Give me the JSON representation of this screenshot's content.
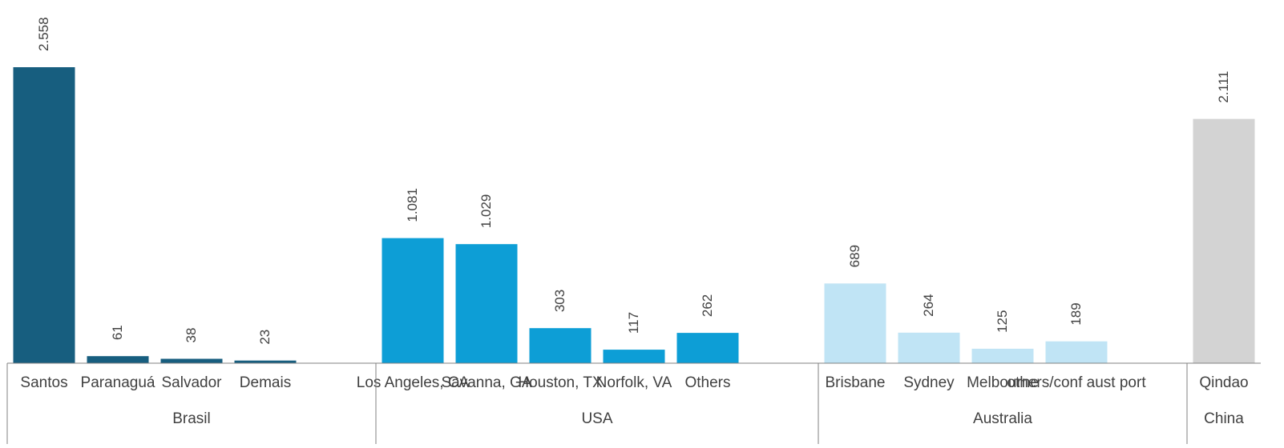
{
  "chart_data": {
    "type": "bar",
    "grouped_axis": true,
    "groups": [
      {
        "name": "Brasil",
        "color": "#175e7f",
        "items": [
          {
            "label": "Santos",
            "value": 2558,
            "value_label": "2.558"
          },
          {
            "label": "Paranaguá",
            "value": 61,
            "value_label": "61"
          },
          {
            "label": "Salvador",
            "value": 38,
            "value_label": "38"
          },
          {
            "label": "Demais",
            "value": 23,
            "value_label": "23"
          },
          {
            "label": "",
            "value": null,
            "value_label": ""
          }
        ]
      },
      {
        "name": "USA",
        "color": "#0d9ed6",
        "items": [
          {
            "label": "Los Angeles, CA",
            "value": 1081,
            "value_label": "1.081"
          },
          {
            "label": "Savanna, GA",
            "value": 1029,
            "value_label": "1.029"
          },
          {
            "label": "Houston, TX",
            "value": 303,
            "value_label": "303"
          },
          {
            "label": "Norfolk, VA",
            "value": 117,
            "value_label": "117"
          },
          {
            "label": "Others",
            "value": 262,
            "value_label": "262"
          },
          {
            "label": "",
            "value": null,
            "value_label": ""
          }
        ]
      },
      {
        "name": "Australia",
        "color": "#c0e4f5",
        "items": [
          {
            "label": "Brisbane",
            "value": 689,
            "value_label": "689"
          },
          {
            "label": "Sydney",
            "value": 264,
            "value_label": "264"
          },
          {
            "label": "Melbourne",
            "value": 125,
            "value_label": "125"
          },
          {
            "label": "others/conf aust port",
            "value": 189,
            "value_label": "189"
          },
          {
            "label": "",
            "value": null,
            "value_label": ""
          }
        ]
      },
      {
        "name": "China",
        "color": "#d3d3d3",
        "items": [
          {
            "label": "Qindao",
            "value": 2111,
            "value_label": "2.111"
          }
        ]
      }
    ],
    "ylim": [
      0,
      2558
    ],
    "grid": false,
    "legend": "none",
    "axis_line_color": "#808080",
    "label_color": "#404040"
  }
}
